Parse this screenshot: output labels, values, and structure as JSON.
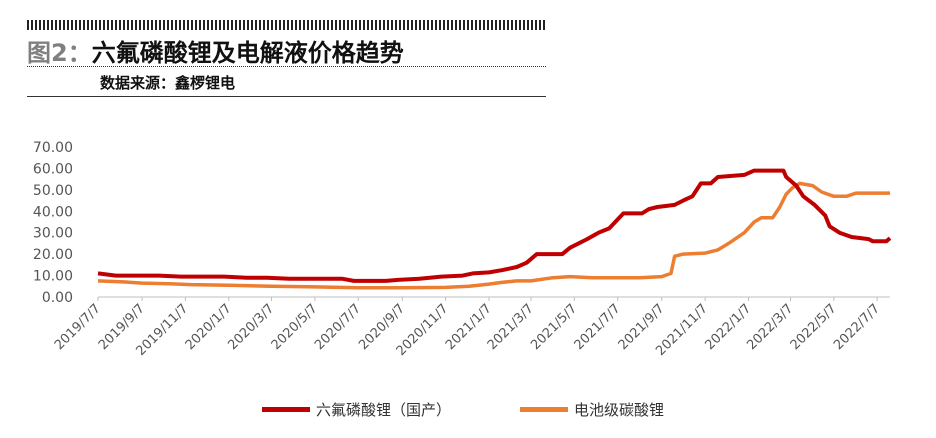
{
  "header": {
    "figure_label": "图2：",
    "title": "六氟磷酸锂及电解液价格趋势",
    "source": "数据来源：鑫椤锂电"
  },
  "chart_data": {
    "type": "line",
    "y_tick_labels": [
      "0.00",
      "10.00",
      "20.00",
      "30.00",
      "40.00",
      "50.00",
      "60.00",
      "70.00"
    ],
    "ylim": [
      0,
      70
    ],
    "x_tick_labels": [
      "2019/7/7",
      "2019/9/7",
      "2019/11/7",
      "2020/1/7",
      "2020/3/7",
      "2020/5/7",
      "2020/7/7",
      "2020/9/7",
      "2020/11/7",
      "2021/1/7",
      "2021/3/7",
      "2021/5/7",
      "2021/7/7",
      "2021/9/7",
      "2021/11/7",
      "2022/1/7",
      "2022/3/7",
      "2022/5/7",
      "2022/7/7"
    ],
    "series": [
      {
        "name": "六氟磷酸锂（国产）",
        "color": "#c00000",
        "points": [
          [
            "2019/7/7",
            11
          ],
          [
            "2019/8/1",
            10
          ],
          [
            "2019/10/1",
            10
          ],
          [
            "2019/11/1",
            9.5
          ],
          [
            "2020/1/1",
            9.5
          ],
          [
            "2020/2/1",
            9
          ],
          [
            "2020/3/1",
            9
          ],
          [
            "2020/4/1",
            8.5
          ],
          [
            "2020/6/15",
            8.5
          ],
          [
            "2020/7/1",
            7.5
          ],
          [
            "2020/8/15",
            7.5
          ],
          [
            "2020/9/1",
            8
          ],
          [
            "2020/10/1",
            8.5
          ],
          [
            "2020/11/1",
            9.5
          ],
          [
            "2020/12/1",
            10
          ],
          [
            "2020/12/15",
            11
          ],
          [
            "2021/1/7",
            11.5
          ],
          [
            "2021/1/25",
            12.5
          ],
          [
            "2021/2/15",
            14
          ],
          [
            "2021/3/1",
            16
          ],
          [
            "2021/3/15",
            20
          ],
          [
            "2021/4/20",
            20
          ],
          [
            "2021/5/1",
            23
          ],
          [
            "2021/5/25",
            27
          ],
          [
            "2021/6/10",
            30
          ],
          [
            "2021/6/25",
            32
          ],
          [
            "2021/7/15",
            39
          ],
          [
            "2021/8/10",
            39
          ],
          [
            "2021/8/20",
            41
          ],
          [
            "2021/9/1",
            42
          ],
          [
            "2021/9/25",
            43
          ],
          [
            "2021/10/7",
            45
          ],
          [
            "2021/10/20",
            47
          ],
          [
            "2021/11/1",
            53
          ],
          [
            "2021/11/15",
            53
          ],
          [
            "2021/11/25",
            56
          ],
          [
            "2022/1/1",
            57
          ],
          [
            "2022/1/15",
            59
          ],
          [
            "2022/2/25",
            59
          ],
          [
            "2022/3/1",
            56
          ],
          [
            "2022/3/15",
            52
          ],
          [
            "2022/3/25",
            47
          ],
          [
            "2022/4/10",
            43
          ],
          [
            "2022/4/25",
            38
          ],
          [
            "2022/5/1",
            33
          ],
          [
            "2022/5/15",
            30
          ],
          [
            "2022/6/1",
            28
          ],
          [
            "2022/6/25",
            27
          ],
          [
            "2022/7/1",
            26
          ],
          [
            "2022/7/20",
            26
          ],
          [
            "2022/7/25",
            27.5
          ]
        ]
      },
      {
        "name": "电池级碳酸锂",
        "color": "#ed7d31",
        "points": [
          [
            "2019/7/7",
            7.5
          ],
          [
            "2019/8/15",
            7
          ],
          [
            "2019/9/7",
            6.5
          ],
          [
            "2019/10/15",
            6.2
          ],
          [
            "2019/11/15",
            5.8
          ],
          [
            "2020/1/7",
            5.5
          ],
          [
            "2020/3/7",
            5
          ],
          [
            "2020/5/7",
            4.7
          ],
          [
            "2020/7/7",
            4.3
          ],
          [
            "2020/9/7",
            4.3
          ],
          [
            "2020/11/7",
            4.5
          ],
          [
            "2020/12/10",
            5
          ],
          [
            "2021/1/7",
            6
          ],
          [
            "2021/1/25",
            6.8
          ],
          [
            "2021/2/15",
            7.5
          ],
          [
            "2021/3/7",
            7.5
          ],
          [
            "2021/4/7",
            9
          ],
          [
            "2021/5/1",
            9.5
          ],
          [
            "2021/6/1",
            9
          ],
          [
            "2021/7/1",
            9
          ],
          [
            "2021/8/7",
            9
          ],
          [
            "2021/9/7",
            9.5
          ],
          [
            "2021/9/20",
            11
          ],
          [
            "2021/9/25",
            19
          ],
          [
            "2021/10/7",
            20
          ],
          [
            "2021/11/7",
            20.5
          ],
          [
            "2021/11/25",
            22
          ],
          [
            "2021/12/10",
            25
          ],
          [
            "2022/1/1",
            30
          ],
          [
            "2022/1/15",
            35
          ],
          [
            "2022/1/25",
            37
          ],
          [
            "2022/2/10",
            37
          ],
          [
            "2022/2/20",
            42
          ],
          [
            "2022/3/1",
            48
          ],
          [
            "2022/3/10",
            51
          ],
          [
            "2022/3/20",
            53
          ],
          [
            "2022/4/7",
            52
          ],
          [
            "2022/4/20",
            49
          ],
          [
            "2022/5/7",
            47
          ],
          [
            "2022/5/25",
            47
          ],
          [
            "2022/6/7",
            48.5
          ],
          [
            "2022/7/25",
            48.5
          ]
        ]
      }
    ]
  }
}
